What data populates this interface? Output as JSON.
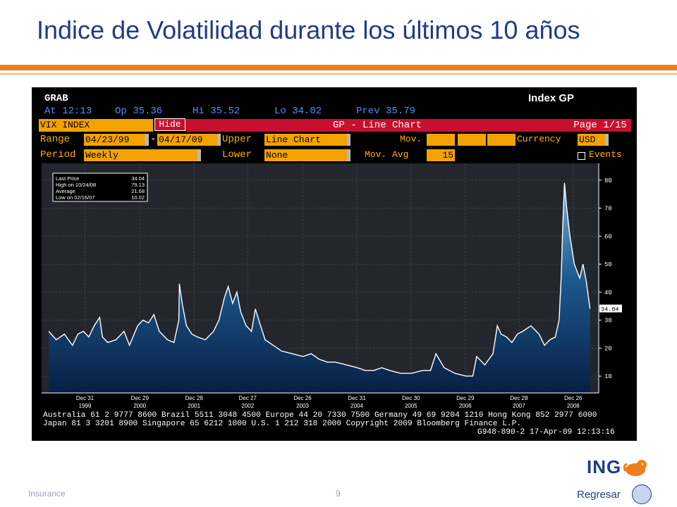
{
  "slide": {
    "title": "Indice de Volatilidad durante los últimos 10 años",
    "footer_left": "Insurance",
    "page_number": "9",
    "logo_text": "ING",
    "back_label": "Regresar"
  },
  "terminal": {
    "grab": "GRAB",
    "index_gp": "Index GP",
    "quote": {
      "at": "At 12:13",
      "op": "Op 35.36",
      "hi": "Hi 35.52",
      "lo": "Lo 34.02",
      "prev": "Prev 35.79"
    },
    "security": "VIX INDEX",
    "hide": "Hide",
    "chart_title": "GP - Line Chart",
    "page": "Page 1/15",
    "range_label": "Range",
    "range_start": "04/23/99",
    "range_dash": "-",
    "range_end": "04/17/09",
    "upper_label": "Upper",
    "upper_value": "Line Chart",
    "mov_avgs_label": "Mov. Avgs",
    "currency_label": "Currency",
    "currency_value": "USD",
    "period_label": "Period",
    "period_value": "Weekly",
    "lower_label": "Lower",
    "lower_value": "None",
    "mov_avg_label": "Mov. Avg",
    "mov_avg_value": "15",
    "events_label": "Events",
    "footer_lines": [
      "Australia 61 2 9777 8600 Brazil 5511 3048 4500 Europe 44 20 7330 7500 Germany 49 69 9204 1210 Hong Kong 852 2977 6000",
      "Japan 81 3 3201 8900          Singapore 65 6212 1000          U.S. 1 212 318 2000          Copyright 2009 Bloomberg Finance L.P.",
      "G948-890-2 17-Apr-09 12:13:16"
    ]
  },
  "colors": {
    "orange": "#f07d1b",
    "title_blue": "#1f3c88",
    "bloomberg_orange": "#f3a200",
    "bloomberg_red": "#c8102e",
    "area_fill": "#0d3a6e",
    "line": "#ffffff"
  },
  "chart_data": {
    "type": "area",
    "title": "",
    "xlabel": "",
    "ylabel": "",
    "ylim": [
      4,
      86
    ],
    "yticks": [
      10,
      20,
      30,
      40,
      50,
      60,
      70,
      80
    ],
    "last_value_tag": "34.04",
    "x_ticks": [
      {
        "x": 1999.98,
        "label1": "Dec 31",
        "label2": "1999"
      },
      {
        "x": 2000.99,
        "label1": "Dec 29",
        "label2": "2000"
      },
      {
        "x": 2001.99,
        "label1": "Dec 28",
        "label2": "2001"
      },
      {
        "x": 2002.98,
        "label1": "Dec 27",
        "label2": "2002"
      },
      {
        "x": 2003.99,
        "label1": "Dec 26",
        "label2": "2003"
      },
      {
        "x": 2004.99,
        "label1": "Dec 31",
        "label2": "2004"
      },
      {
        "x": 2005.99,
        "label1": "Dec 30",
        "label2": "2005"
      },
      {
        "x": 2006.99,
        "label1": "Dec 29",
        "label2": "2006"
      },
      {
        "x": 2007.98,
        "label1": "Dec 28",
        "label2": "2007"
      },
      {
        "x": 2008.98,
        "label1": "Dec 26",
        "label2": "2008"
      }
    ],
    "stats": [
      {
        "label": "Last Price",
        "value": "34.04"
      },
      {
        "label": "High on 10/24/08",
        "value": "79.13"
      },
      {
        "label": "Average",
        "value": "21.68"
      },
      {
        "label": "Low on 02/16/07",
        "value": "10.02"
      }
    ],
    "series": [
      {
        "x": [
          1999.31,
          1999.45,
          1999.6,
          1999.75,
          1999.85,
          1999.95,
          2000.05,
          2000.15,
          2000.25,
          2000.3,
          2000.4,
          2000.55,
          2000.7,
          2000.8,
          2000.95,
          2001.05,
          2001.15,
          2001.25,
          2001.35,
          2001.5,
          2001.62,
          2001.71,
          2001.72,
          2001.78,
          2001.85,
          2001.95,
          2002.05,
          2002.2,
          2002.35,
          2002.45,
          2002.55,
          2002.62,
          2002.7,
          2002.78,
          2002.85,
          2002.95,
          2003.05,
          2003.12,
          2003.2,
          2003.3,
          2003.45,
          2003.6,
          2003.8,
          2004.0,
          2004.15,
          2004.3,
          2004.45,
          2004.6,
          2004.8,
          2005.0,
          2005.15,
          2005.3,
          2005.45,
          2005.6,
          2005.8,
          2006.0,
          2006.2,
          2006.35,
          2006.45,
          2006.6,
          2006.8,
          2007.0,
          2007.13,
          2007.2,
          2007.35,
          2007.5,
          2007.58,
          2007.65,
          2007.75,
          2007.85,
          2007.95,
          2008.05,
          2008.2,
          2008.35,
          2008.45,
          2008.55,
          2008.65,
          2008.72,
          2008.76,
          2008.79,
          2008.82,
          2008.86,
          2008.92,
          2009.0,
          2009.1,
          2009.16,
          2009.22,
          2009.29
        ],
        "values": [
          26,
          23,
          25,
          21,
          25,
          26,
          24,
          28,
          31,
          24,
          22,
          23,
          26,
          21,
          28,
          30,
          29,
          32,
          26,
          23,
          22,
          30,
          43,
          35,
          28,
          25,
          24,
          23,
          26,
          30,
          38,
          42,
          36,
          40,
          33,
          28,
          26,
          34,
          29,
          23,
          21,
          19,
          18,
          17,
          18,
          16,
          15,
          15,
          14,
          13,
          12,
          12,
          13,
          12,
          11,
          11,
          12,
          12,
          18,
          13,
          11,
          10,
          10,
          17,
          14,
          18,
          28,
          25,
          24,
          22,
          25,
          26,
          28,
          25,
          21,
          23,
          24,
          30,
          46,
          65,
          79,
          70,
          60,
          50,
          45,
          50,
          44,
          34
        ]
      }
    ]
  }
}
